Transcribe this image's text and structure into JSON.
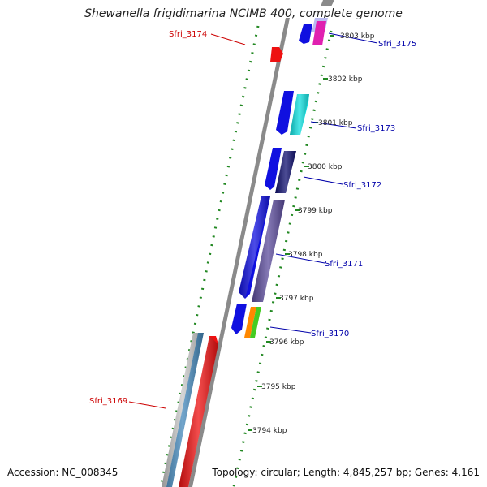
{
  "title": "Shewanella frigidimarina NCIMB 400, complete genome",
  "footer": {
    "accession": "Accession: NC_008345",
    "topology": "Topology: circular; Length: 4,845,257 bp; Genes: 4,161"
  },
  "colors": {
    "reverse_gene_label": "#cc0000",
    "forward_gene_label": "#0000aa",
    "ruler_tick": "#228822",
    "backbone": "#888888"
  },
  "ruler_labels": [
    "3803 kbp",
    "3802 kbp",
    "3801 kbp",
    "3800 kbp",
    "3799 kbp",
    "3798 kbp",
    "3797 kbp",
    "3796 kbp",
    "3795 kbp",
    "3794 kbp"
  ],
  "gene_labels": [
    {
      "text": "Sfri_3174",
      "strand": "reverse"
    },
    {
      "text": "Sfri_3175",
      "strand": "forward"
    },
    {
      "text": "Sfri_3173",
      "strand": "forward"
    },
    {
      "text": "Sfri_3172",
      "strand": "forward"
    },
    {
      "text": "Sfri_3171",
      "strand": "forward"
    },
    {
      "text": "Sfri_3170",
      "strand": "forward"
    },
    {
      "text": "Sfri_3169",
      "strand": "reverse"
    }
  ],
  "gene_features": [
    {
      "name": "gene-red-small",
      "color": "#ee1111"
    },
    {
      "name": "gene-blue-top",
      "color": "#1010e0"
    },
    {
      "name": "gene-magenta-top",
      "color": "#e020b0"
    },
    {
      "name": "gene-lavender-top",
      "color": "#bbbbf0"
    },
    {
      "name": "gene-blue-3173",
      "color": "#1010e0"
    },
    {
      "name": "gene-cyan-3173",
      "color": "#10e0e0"
    },
    {
      "name": "gene-blue-3172",
      "color": "#1010e0"
    },
    {
      "name": "gene-navy-3172",
      "color": "#101070"
    },
    {
      "name": "gene-blue-3171",
      "color": "#1010e0"
    },
    {
      "name": "gene-purple-3171",
      "color": "#5c4c9c"
    },
    {
      "name": "gene-blue-3170",
      "color": "#1010e0"
    },
    {
      "name": "gene-orange-3170",
      "color": "#ff8800"
    },
    {
      "name": "gene-green-3170",
      "color": "#44cc22"
    },
    {
      "name": "gene-silver-3169",
      "color": "#c8c8c8"
    },
    {
      "name": "gene-steelblue-3169",
      "color": "#4488bb"
    },
    {
      "name": "gene-red-3169",
      "color": "#ee1111"
    }
  ]
}
